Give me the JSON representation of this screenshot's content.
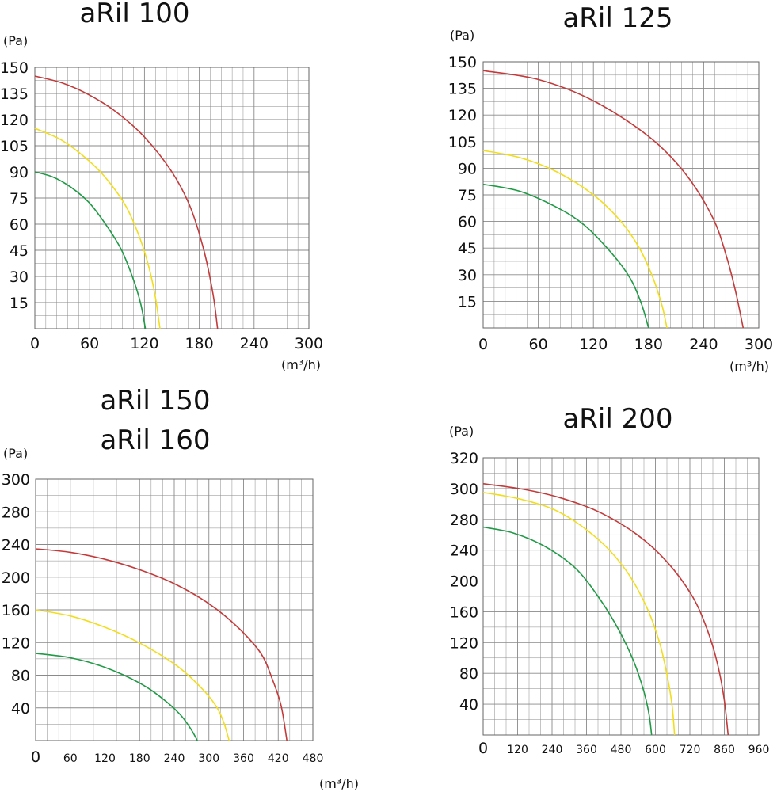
{
  "colors": {
    "red": "#c43a3a",
    "yellow": "#f2dd1c",
    "green": "#1f9a45",
    "grid": "#8a8a8a"
  },
  "chart_data": [
    {
      "type": "line",
      "titles": [
        "aRil 100"
      ],
      "ylabel": "(Pa)",
      "xlabel": "(m³/h)",
      "xlim": [
        0,
        300
      ],
      "ylim": [
        0,
        150
      ],
      "x_ticks": [
        "0",
        "60",
        "120",
        "180",
        "240",
        "300"
      ],
      "y_ticks": [
        "150",
        "135",
        "120",
        "105",
        "90",
        "75",
        "60",
        "45",
        "30",
        "15"
      ],
      "grid": true,
      "series": [
        {
          "color": "red",
          "x": [
            0,
            30,
            60,
            90,
            120,
            150,
            170,
            185,
            195,
            200
          ],
          "y": [
            145,
            141,
            134,
            124,
            110,
            90,
            70,
            45,
            20,
            0
          ]
        },
        {
          "color": "yellow",
          "x": [
            0,
            30,
            60,
            80,
            100,
            115,
            125,
            132,
            137
          ],
          "y": [
            115,
            108,
            96,
            85,
            70,
            52,
            35,
            18,
            0
          ]
        },
        {
          "color": "green",
          "x": [
            0,
            20,
            40,
            60,
            80,
            95,
            108,
            116,
            121
          ],
          "y": [
            90,
            87,
            81,
            72,
            58,
            45,
            28,
            14,
            0
          ]
        }
      ]
    },
    {
      "type": "line",
      "titles": [
        "aRil 125"
      ],
      "ylabel": "(Pa)",
      "xlabel": "(m³/h)",
      "xlim": [
        0,
        300
      ],
      "ylim": [
        0,
        150
      ],
      "x_ticks": [
        "0",
        "60",
        "120",
        "180",
        "240",
        "300"
      ],
      "y_ticks": [
        "150",
        "135",
        "120",
        "105",
        "90",
        "75",
        "60",
        "45",
        "30",
        "15"
      ],
      "grid": true,
      "series": [
        {
          "color": "red",
          "x": [
            0,
            60,
            120,
            180,
            220,
            250,
            265,
            275,
            283
          ],
          "y": [
            145,
            140,
            128,
            108,
            87,
            62,
            40,
            20,
            0
          ]
        },
        {
          "color": "yellow",
          "x": [
            0,
            40,
            80,
            120,
            150,
            170,
            185,
            195,
            200
          ],
          "y": [
            100,
            96,
            88,
            75,
            60,
            45,
            28,
            12,
            0
          ]
        },
        {
          "color": "green",
          "x": [
            0,
            40,
            80,
            110,
            140,
            160,
            172,
            180
          ],
          "y": [
            81,
            77,
            68,
            58,
            42,
            28,
            14,
            0
          ]
        }
      ]
    },
    {
      "type": "line",
      "titles": [
        "aRil 150",
        "aRil 160"
      ],
      "ylabel": "(Pa)",
      "xlabel": "(m³/h)",
      "xlim": [
        0,
        480
      ],
      "ylim": [
        0,
        300
      ],
      "x_ticks": [
        "0",
        "60",
        "120",
        "180",
        "240",
        "300",
        "360",
        "420",
        "480"
      ],
      "y_ticks": [
        "300",
        "280",
        "240",
        "200",
        "160",
        "120",
        "80",
        "40"
      ],
      "grid": true,
      "series": [
        {
          "color": "red",
          "x": [
            0,
            60,
            120,
            180,
            240,
            300,
            350,
            390,
            410,
            425,
            435
          ],
          "y": [
            220,
            216,
            208,
            196,
            180,
            157,
            130,
            100,
            70,
            40,
            0
          ]
        },
        {
          "color": "yellow",
          "x": [
            0,
            60,
            120,
            180,
            240,
            280,
            310,
            325,
            335
          ],
          "y": [
            150,
            143,
            130,
            112,
            88,
            65,
            42,
            22,
            0
          ]
        },
        {
          "color": "green",
          "x": [
            0,
            60,
            120,
            180,
            220,
            250,
            268,
            280
          ],
          "y": [
            100,
            95,
            84,
            66,
            48,
            30,
            14,
            0
          ]
        }
      ]
    },
    {
      "type": "line",
      "titles": [
        "aRil 200"
      ],
      "ylabel": "(Pa)",
      "xlabel": "",
      "xlim": [
        0,
        1080
      ],
      "ylim": [
        0,
        320
      ],
      "x_ticks": [
        "0",
        "120",
        "240",
        "360",
        "480",
        "600",
        "720",
        "860",
        "960"
      ],
      "y_ticks": [
        "320",
        "300",
        "280",
        "240",
        "200",
        "160",
        "120",
        "80",
        "40"
      ],
      "grid": true,
      "series": [
        {
          "color": "red",
          "x": [
            0,
            150,
            300,
            450,
            600,
            720,
            820,
            880,
            920,
            945,
            960
          ],
          "y": [
            290,
            284,
            274,
            258,
            232,
            200,
            160,
            120,
            80,
            40,
            0
          ]
        },
        {
          "color": "yellow",
          "x": [
            0,
            150,
            300,
            450,
            560,
            640,
            690,
            720,
            740,
            750
          ],
          "y": [
            280,
            272,
            257,
            226,
            190,
            148,
            108,
            70,
            35,
            0
          ]
        },
        {
          "color": "green",
          "x": [
            0,
            120,
            240,
            360,
            450,
            530,
            590,
            630,
            650,
            660
          ],
          "y": [
            240,
            233,
            218,
            193,
            160,
            122,
            85,
            50,
            24,
            0
          ]
        }
      ]
    }
  ]
}
